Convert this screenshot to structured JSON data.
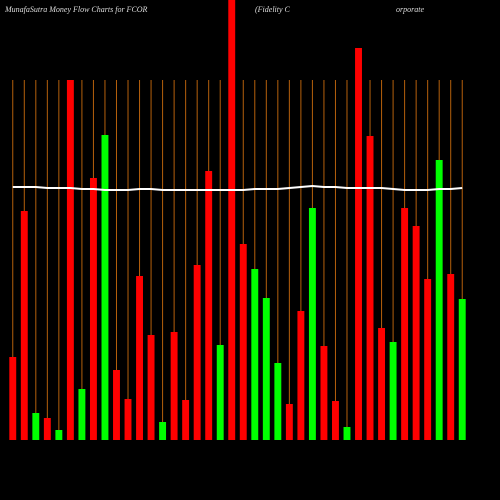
{
  "chart_data": {
    "type": "bar",
    "title": "MunafaSutra  Money Flow  Charts for FCOR",
    "subtitle": "(Fidelity C",
    "annotation": "orporate",
    "categories": [
      null,
      null,
      null,
      null,
      null,
      null,
      null,
      null,
      null,
      null,
      null,
      null,
      null,
      null,
      null,
      null,
      null,
      null,
      null,
      null,
      null,
      null,
      null,
      null,
      null,
      null,
      null,
      null,
      null,
      null,
      null,
      null,
      null,
      null,
      null,
      null,
      null,
      null,
      null,
      null
    ],
    "series": [
      {
        "type": "bar",
        "values": [
          83,
          229,
          27,
          22,
          10,
          360,
          51,
          262,
          305,
          70,
          41,
          164,
          105,
          18,
          108,
          40,
          175,
          269,
          95,
          440,
          196,
          171,
          142,
          77,
          36,
          129,
          232,
          94,
          39,
          13,
          392,
          304,
          112,
          98,
          232,
          214,
          161,
          280,
          166,
          141
        ],
        "colors": [
          "#ff0000",
          "#ff0000",
          "#00ff00",
          "#ff0000",
          "#00ff00",
          "#ff0000",
          "#00ff00",
          "#ff0000",
          "#00ff00",
          "#ff0000",
          "#ff0000",
          "#ff0000",
          "#ff0000",
          "#00ff00",
          "#ff0000",
          "#ff0000",
          "#ff0000",
          "#ff0000",
          "#00ff00",
          "#ff0000",
          "#ff0000",
          "#00ff00",
          "#00ff00",
          "#00ff00",
          "#ff0000",
          "#ff0000",
          "#00ff00",
          "#ff0000",
          "#ff0000",
          "#00ff00",
          "#ff0000",
          "#ff0000",
          "#ff0000",
          "#00ff00",
          "#ff0000",
          "#ff0000",
          "#ff0000",
          "#00ff00",
          "#ff0000",
          "#00ff00"
        ]
      },
      {
        "type": "line",
        "color": "#ffffff",
        "values": [
          253,
          253,
          253,
          252,
          252,
          252,
          251,
          251,
          250,
          250,
          250,
          251,
          251,
          250,
          250,
          250,
          250,
          250,
          250,
          250,
          250,
          251,
          251,
          251,
          252,
          253,
          254,
          253,
          253,
          252,
          252,
          252,
          252,
          251,
          250,
          250,
          250,
          251,
          251,
          252
        ]
      }
    ],
    "ylim": [
      0,
      440
    ],
    "grid": true,
    "grid_color": "#b5600c"
  }
}
